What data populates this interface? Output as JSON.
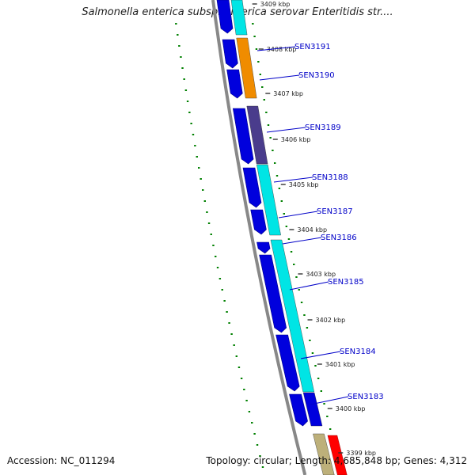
{
  "header": {
    "title": "Salmonella enterica subsp. enterica serovar Enteritidis str...."
  },
  "footer": {
    "accession": "Accession: NC_011294",
    "topology": "Topology: circular; Length: 4,685,848 bp; Genes: 4,312"
  },
  "colors": {
    "backbone": "#888888",
    "forward_gene": "#0000dd",
    "cds_cyan": "#00e5e5",
    "cds_orange": "#f08c00",
    "cds_purple": "#4a3c8c",
    "cds_tan": "#bdb07a",
    "cds_red": "#ff0000",
    "gc_dots": "#008000",
    "label": "#0000c8"
  },
  "kbp_ticks": [
    {
      "label": "3409 kbp"
    },
    {
      "label": "3408 kbp"
    },
    {
      "label": "3407 kbp"
    },
    {
      "label": "3406 kbp"
    },
    {
      "label": "3405 kbp"
    },
    {
      "label": "3404 kbp"
    },
    {
      "label": "3403 kbp"
    },
    {
      "label": "3402 kbp"
    },
    {
      "label": "3401 kbp"
    },
    {
      "label": "3400 kbp"
    },
    {
      "label": "3399 kbp"
    }
  ],
  "genes": [
    {
      "name": "SEN3191"
    },
    {
      "name": "SEN3190"
    },
    {
      "name": "SEN3189"
    },
    {
      "name": "SEN3188"
    },
    {
      "name": "SEN3187"
    },
    {
      "name": "SEN3186"
    },
    {
      "name": "SEN3185"
    },
    {
      "name": "SEN3184"
    },
    {
      "name": "SEN3183"
    }
  ]
}
